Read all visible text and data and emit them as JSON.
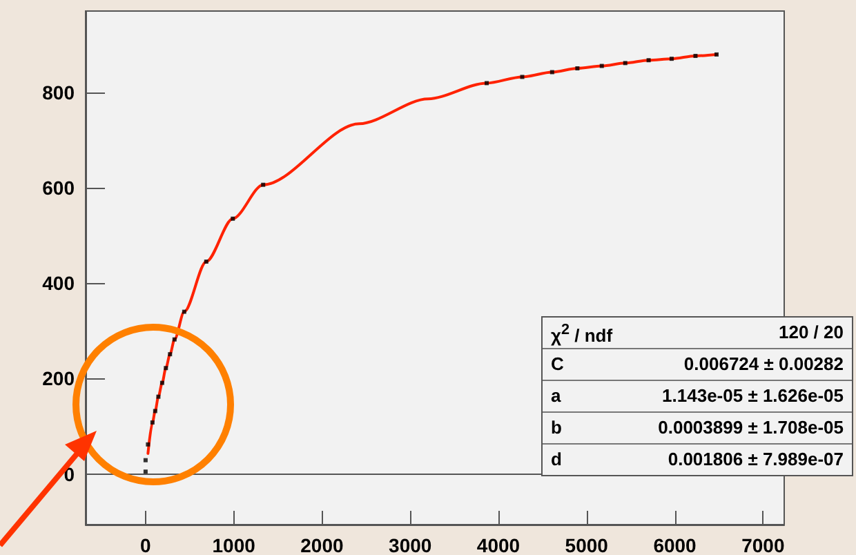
{
  "chart_data": {
    "type": "scatter",
    "xlim": [
      -680,
      7240
    ],
    "ylim": [
      -106,
      970
    ],
    "xticks": [
      0,
      1000,
      2000,
      3000,
      4000,
      5000,
      6000,
      7000
    ],
    "yticks": [
      0,
      200,
      400,
      600,
      800
    ],
    "grid": false,
    "marker": "square",
    "series": [
      {
        "color": "#000000",
        "x": [
          0,
          0,
          27,
          78,
          109,
          145,
          188,
          230,
          277,
          328,
          438,
          688,
          989,
          1333,
          3867,
          4270,
          4609,
          4895,
          5172,
          5438,
          5703,
          5964,
          6234,
          6473
        ],
        "values": [
          5,
          29,
          62,
          108,
          132,
          162,
          191,
          222,
          251,
          282,
          340,
          445,
          535,
          606,
          819,
          832,
          842,
          850,
          855,
          861,
          867,
          870,
          876,
          879
        ]
      },
      {
        "type": "line",
        "color": "#ff2200",
        "line_style": "solid",
        "marker": "none",
        "x": [
          27,
          78,
          109,
          145,
          188,
          230,
          277,
          328,
          438,
          688,
          989,
          1333,
          2422,
          3203,
          3867,
          4270,
          4609,
          4895,
          5172,
          5438,
          5703,
          5964,
          6234,
          6473
        ],
        "values": [
          43,
          108,
          132,
          162,
          191,
          222,
          251,
          282,
          340,
          445,
          535,
          606,
          734,
          786,
          819,
          832,
          842,
          850,
          855,
          861,
          867,
          870,
          876,
          879
        ]
      }
    ],
    "ref_lines": [
      {
        "axis": "y",
        "value": 0,
        "color": "#555555"
      }
    ],
    "annotations": [
      "χ$^{2}$ / ndf",
      "120 / 20",
      "C",
      "0.006724 ± 0.00282",
      "a",
      "1.143e-05 ± 1.626e-05",
      "b",
      "0.0003899 ± 1.708e-05",
      "d",
      "0.001806 ± 7.989e-07"
    ]
  }
}
